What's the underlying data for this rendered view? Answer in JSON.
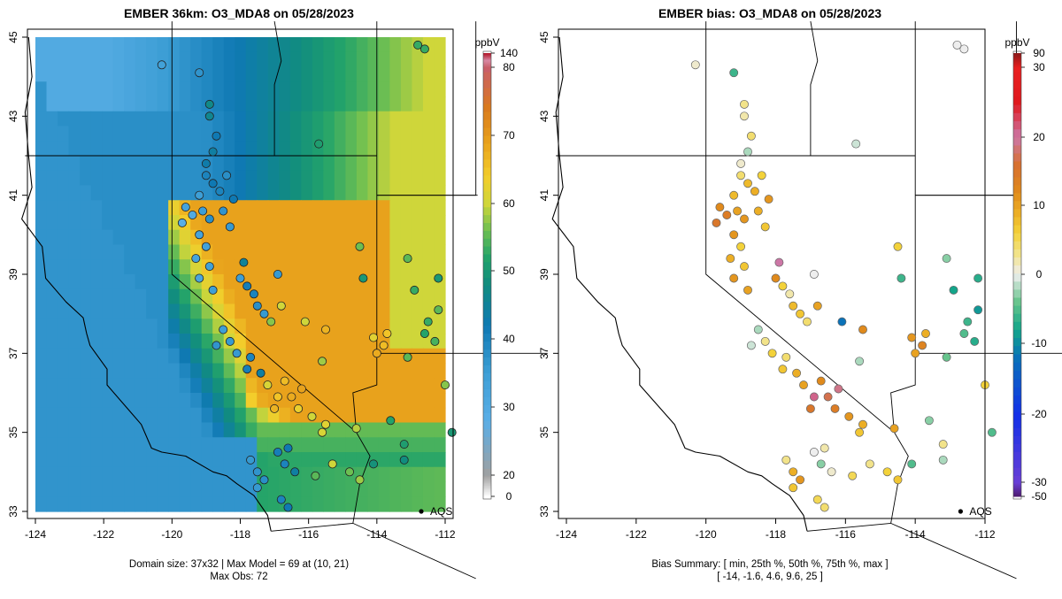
{
  "chart_data": [
    {
      "type": "heatmap",
      "title": "EMBER 36km: O3_MDA8 on 05/28/2023",
      "xlabel": "",
      "ylabel": "",
      "xlim": [
        -124,
        -112
      ],
      "ylim": [
        33,
        45
      ],
      "x_ticks": [
        "-124",
        "-122",
        "-120",
        "-118",
        "-116",
        "-114",
        "-112"
      ],
      "y_ticks": [
        "33",
        "35",
        "37",
        "39",
        "41",
        "43",
        "45"
      ],
      "colorbar": {
        "unit": "ppbV",
        "ticks": [
          "0",
          "20",
          "30",
          "40",
          "50",
          "60",
          "70",
          "80",
          "140"
        ],
        "range": [
          0,
          140
        ]
      },
      "reference_point": {
        "label": "AQS",
        "lon": -112.7,
        "lat": 33.0
      },
      "footer_lines": [
        "Domain size: 37x32 | Max Model = 69 at (10, 21)",
        "Max Obs: 72"
      ],
      "summary": {
        "domain_size": "37x32",
        "max_model": 69,
        "max_model_cell": "(10, 21)",
        "max_obs": 72
      }
    },
    {
      "type": "scatter",
      "title": "EMBER bias: O3_MDA8 on 05/28/2023",
      "xlabel": "",
      "ylabel": "",
      "xlim": [
        -124,
        -112
      ],
      "ylim": [
        33,
        45
      ],
      "x_ticks": [
        "-124",
        "-122",
        "-120",
        "-118",
        "-116",
        "-114",
        "-112"
      ],
      "y_ticks": [
        "33",
        "35",
        "37",
        "39",
        "41",
        "43",
        "45"
      ],
      "colorbar": {
        "unit": "ppbV",
        "ticks": [
          "-50",
          "-30",
          "-20",
          "-10",
          "0",
          "10",
          "20",
          "30",
          "90"
        ],
        "range": [
          -50,
          90
        ]
      },
      "reference_point": {
        "label": "AQS",
        "lon": -112.7,
        "lat": 33.0
      },
      "footer_lines": [
        "Bias Summary: [ min, 25th %, 50th %, 75th %, max ]",
        "[ -14,   -1.6,   4.6,   9.6,   25 ]"
      ],
      "bias_summary": {
        "min": -14,
        "p25": -1.6,
        "p50": 4.6,
        "p75": 9.6,
        "max": 25
      }
    }
  ]
}
